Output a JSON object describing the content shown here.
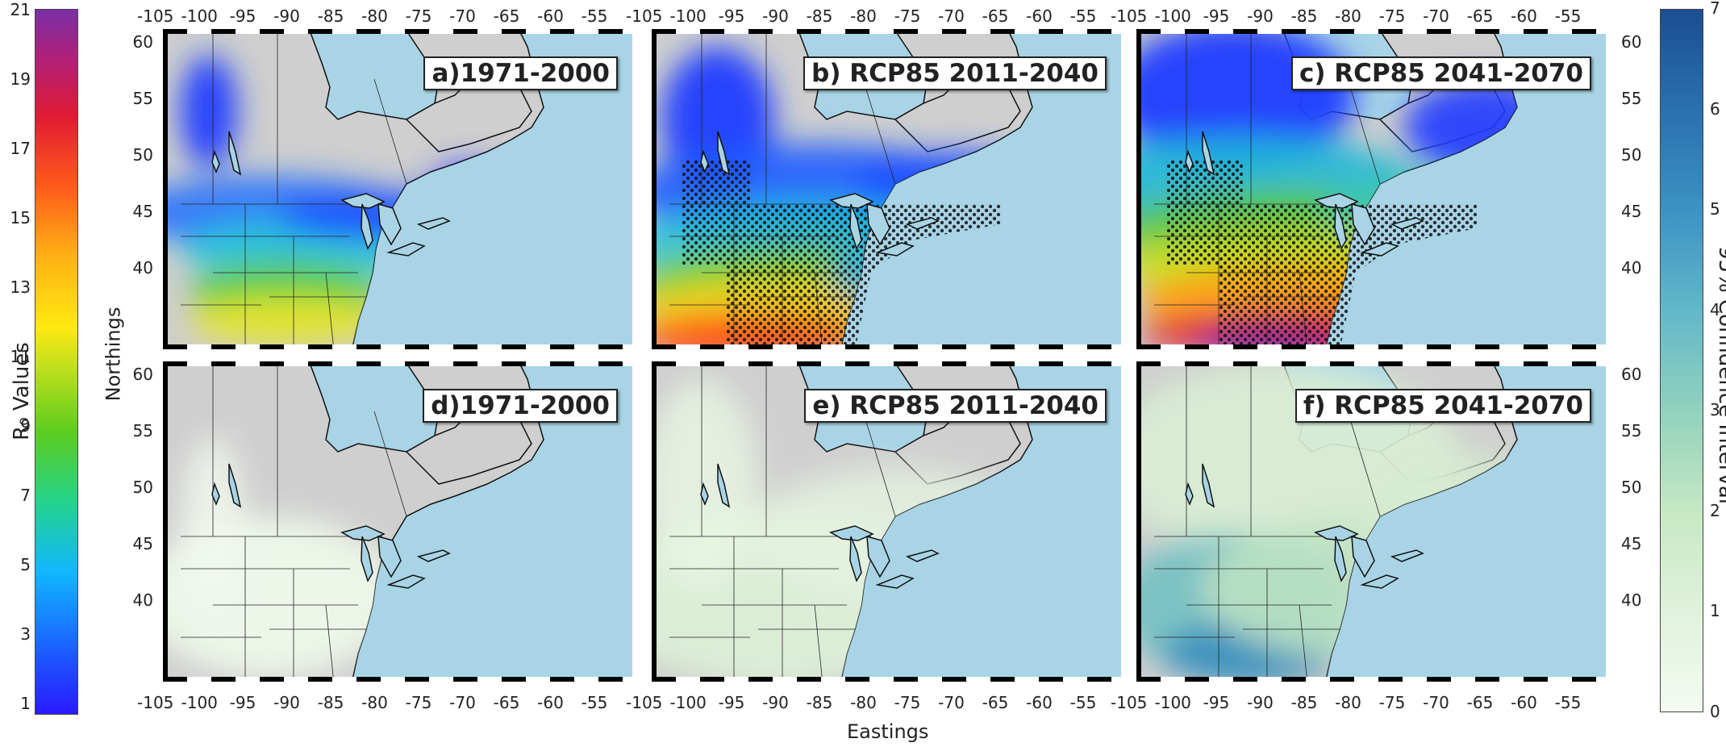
{
  "left_colorbar": {
    "title": "R₀ Values",
    "ticks": [
      "21",
      "19",
      "17",
      "15",
      "13",
      "11",
      "9",
      "7",
      "5",
      "3",
      "1"
    ]
  },
  "right_colorbar": {
    "title": "95% Confidence Interval",
    "ticks": [
      "7",
      "6",
      "5",
      "4",
      "3",
      "2",
      "1",
      "0"
    ]
  },
  "axes": {
    "ylabel": "Northings",
    "xlabel": "Eastings",
    "x_ticks": [
      "-105",
      "-100",
      "-95",
      "-90",
      "-85",
      "-80",
      "-75",
      "-70",
      "-65",
      "-60",
      "-55"
    ],
    "y_ticks": [
      "60",
      "55",
      "50",
      "45",
      "40"
    ]
  },
  "panels": [
    {
      "label": "a)1971-2000",
      "type": "r0",
      "period": "1971-2000"
    },
    {
      "label": "b) RCP85 2011-2040",
      "type": "r0",
      "period": "2011-2040"
    },
    {
      "label": "c) RCP85 2041-2070",
      "type": "r0",
      "period": "2041-2070"
    },
    {
      "label": "d)1971-2000",
      "type": "ci",
      "period": "1971-2000"
    },
    {
      "label": "e) RCP85 2011-2040",
      "type": "ci",
      "period": "2011-2040"
    },
    {
      "label": "f) RCP85 2041-2070",
      "type": "ci",
      "period": "2041-2070"
    }
  ],
  "colors": {
    "ocean": "#a8d4e6",
    "land": "#cfcfcf"
  }
}
